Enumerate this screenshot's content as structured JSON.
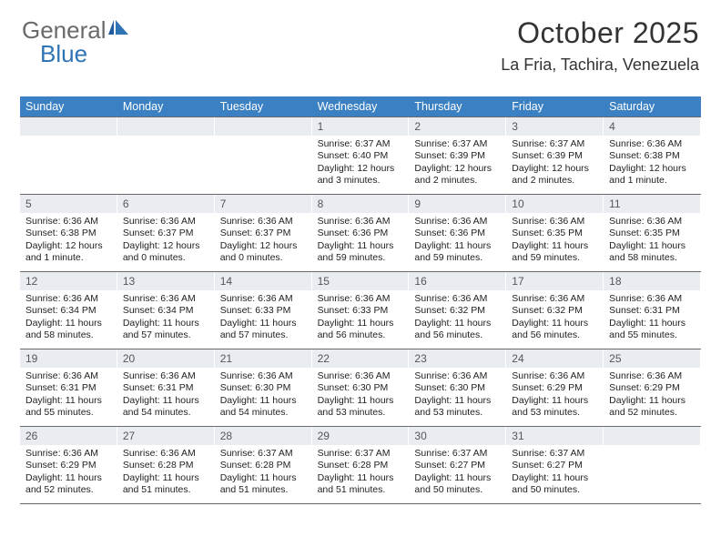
{
  "logo": {
    "word1": "General",
    "word2": "Blue"
  },
  "header": {
    "title": "October 2025",
    "location": "La Fria, Tachira, Venezuela"
  },
  "styling": {
    "header_bg": "#3a80c3",
    "header_fg": "#ffffff",
    "daynum_bg": "#e9edf2",
    "daynum_fg": "#555555",
    "rule_color": "#6a6a6a",
    "background": "#ffffff",
    "title_color": "#333333",
    "body_text_color": "#222222",
    "logo_gray": "#6a6a6a",
    "logo_blue": "#2f74b5",
    "title_fontsize": 32,
    "location_fontsize": 18,
    "header_fontsize": 12.5,
    "daynum_fontsize": 12,
    "body_fontsize": 10.5,
    "columns": 7
  },
  "day_names": [
    "Sunday",
    "Monday",
    "Tuesday",
    "Wednesday",
    "Thursday",
    "Friday",
    "Saturday"
  ],
  "weeks": [
    [
      {
        "n": "",
        "sr": "",
        "ss": "",
        "dl": ""
      },
      {
        "n": "",
        "sr": "",
        "ss": "",
        "dl": ""
      },
      {
        "n": "",
        "sr": "",
        "ss": "",
        "dl": ""
      },
      {
        "n": "1",
        "sr": "Sunrise: 6:37 AM",
        "ss": "Sunset: 6:40 PM",
        "dl": "Daylight: 12 hours and 3 minutes."
      },
      {
        "n": "2",
        "sr": "Sunrise: 6:37 AM",
        "ss": "Sunset: 6:39 PM",
        "dl": "Daylight: 12 hours and 2 minutes."
      },
      {
        "n": "3",
        "sr": "Sunrise: 6:37 AM",
        "ss": "Sunset: 6:39 PM",
        "dl": "Daylight: 12 hours and 2 minutes."
      },
      {
        "n": "4",
        "sr": "Sunrise: 6:36 AM",
        "ss": "Sunset: 6:38 PM",
        "dl": "Daylight: 12 hours and 1 minute."
      }
    ],
    [
      {
        "n": "5",
        "sr": "Sunrise: 6:36 AM",
        "ss": "Sunset: 6:38 PM",
        "dl": "Daylight: 12 hours and 1 minute."
      },
      {
        "n": "6",
        "sr": "Sunrise: 6:36 AM",
        "ss": "Sunset: 6:37 PM",
        "dl": "Daylight: 12 hours and 0 minutes."
      },
      {
        "n": "7",
        "sr": "Sunrise: 6:36 AM",
        "ss": "Sunset: 6:37 PM",
        "dl": "Daylight: 12 hours and 0 minutes."
      },
      {
        "n": "8",
        "sr": "Sunrise: 6:36 AM",
        "ss": "Sunset: 6:36 PM",
        "dl": "Daylight: 11 hours and 59 minutes."
      },
      {
        "n": "9",
        "sr": "Sunrise: 6:36 AM",
        "ss": "Sunset: 6:36 PM",
        "dl": "Daylight: 11 hours and 59 minutes."
      },
      {
        "n": "10",
        "sr": "Sunrise: 6:36 AM",
        "ss": "Sunset: 6:35 PM",
        "dl": "Daylight: 11 hours and 59 minutes."
      },
      {
        "n": "11",
        "sr": "Sunrise: 6:36 AM",
        "ss": "Sunset: 6:35 PM",
        "dl": "Daylight: 11 hours and 58 minutes."
      }
    ],
    [
      {
        "n": "12",
        "sr": "Sunrise: 6:36 AM",
        "ss": "Sunset: 6:34 PM",
        "dl": "Daylight: 11 hours and 58 minutes."
      },
      {
        "n": "13",
        "sr": "Sunrise: 6:36 AM",
        "ss": "Sunset: 6:34 PM",
        "dl": "Daylight: 11 hours and 57 minutes."
      },
      {
        "n": "14",
        "sr": "Sunrise: 6:36 AM",
        "ss": "Sunset: 6:33 PM",
        "dl": "Daylight: 11 hours and 57 minutes."
      },
      {
        "n": "15",
        "sr": "Sunrise: 6:36 AM",
        "ss": "Sunset: 6:33 PM",
        "dl": "Daylight: 11 hours and 56 minutes."
      },
      {
        "n": "16",
        "sr": "Sunrise: 6:36 AM",
        "ss": "Sunset: 6:32 PM",
        "dl": "Daylight: 11 hours and 56 minutes."
      },
      {
        "n": "17",
        "sr": "Sunrise: 6:36 AM",
        "ss": "Sunset: 6:32 PM",
        "dl": "Daylight: 11 hours and 56 minutes."
      },
      {
        "n": "18",
        "sr": "Sunrise: 6:36 AM",
        "ss": "Sunset: 6:31 PM",
        "dl": "Daylight: 11 hours and 55 minutes."
      }
    ],
    [
      {
        "n": "19",
        "sr": "Sunrise: 6:36 AM",
        "ss": "Sunset: 6:31 PM",
        "dl": "Daylight: 11 hours and 55 minutes."
      },
      {
        "n": "20",
        "sr": "Sunrise: 6:36 AM",
        "ss": "Sunset: 6:31 PM",
        "dl": "Daylight: 11 hours and 54 minutes."
      },
      {
        "n": "21",
        "sr": "Sunrise: 6:36 AM",
        "ss": "Sunset: 6:30 PM",
        "dl": "Daylight: 11 hours and 54 minutes."
      },
      {
        "n": "22",
        "sr": "Sunrise: 6:36 AM",
        "ss": "Sunset: 6:30 PM",
        "dl": "Daylight: 11 hours and 53 minutes."
      },
      {
        "n": "23",
        "sr": "Sunrise: 6:36 AM",
        "ss": "Sunset: 6:30 PM",
        "dl": "Daylight: 11 hours and 53 minutes."
      },
      {
        "n": "24",
        "sr": "Sunrise: 6:36 AM",
        "ss": "Sunset: 6:29 PM",
        "dl": "Daylight: 11 hours and 53 minutes."
      },
      {
        "n": "25",
        "sr": "Sunrise: 6:36 AM",
        "ss": "Sunset: 6:29 PM",
        "dl": "Daylight: 11 hours and 52 minutes."
      }
    ],
    [
      {
        "n": "26",
        "sr": "Sunrise: 6:36 AM",
        "ss": "Sunset: 6:29 PM",
        "dl": "Daylight: 11 hours and 52 minutes."
      },
      {
        "n": "27",
        "sr": "Sunrise: 6:36 AM",
        "ss": "Sunset: 6:28 PM",
        "dl": "Daylight: 11 hours and 51 minutes."
      },
      {
        "n": "28",
        "sr": "Sunrise: 6:37 AM",
        "ss": "Sunset: 6:28 PM",
        "dl": "Daylight: 11 hours and 51 minutes."
      },
      {
        "n": "29",
        "sr": "Sunrise: 6:37 AM",
        "ss": "Sunset: 6:28 PM",
        "dl": "Daylight: 11 hours and 51 minutes."
      },
      {
        "n": "30",
        "sr": "Sunrise: 6:37 AM",
        "ss": "Sunset: 6:27 PM",
        "dl": "Daylight: 11 hours and 50 minutes."
      },
      {
        "n": "31",
        "sr": "Sunrise: 6:37 AM",
        "ss": "Sunset: 6:27 PM",
        "dl": "Daylight: 11 hours and 50 minutes."
      },
      {
        "n": "",
        "sr": "",
        "ss": "",
        "dl": ""
      }
    ]
  ]
}
